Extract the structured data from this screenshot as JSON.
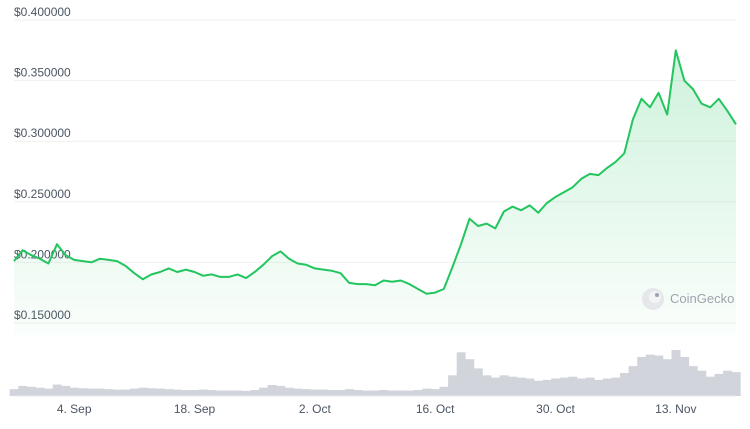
{
  "chart_data": {
    "type": "area",
    "title": "",
    "xlabel": "",
    "ylabel": "",
    "y_tick_labels": [
      "$0.400000",
      "$0.350000",
      "$0.300000",
      "$0.250000",
      "$0.200000",
      "$0.150000"
    ],
    "y_tick_values": [
      0.4,
      0.35,
      0.3,
      0.25,
      0.2,
      0.15
    ],
    "ylim": [
      0.14,
      0.41
    ],
    "x_tick_labels": [
      "4. Sep",
      "18. Sep",
      "2. Oct",
      "16. Oct",
      "30. Oct",
      "13. Nov"
    ],
    "x_tick_dates": [
      "2023-09-04",
      "2023-09-18",
      "2023-10-02",
      "2023-10-16",
      "2023-10-30",
      "2023-11-13"
    ],
    "xlim": [
      "2023-08-28",
      "2023-11-20"
    ],
    "grid": "horizontal",
    "line_color": "#22c55e",
    "fill_color": "#dcfce7",
    "volume_color": "#d1d5db",
    "series": [
      {
        "x": [
          "2023-08-28",
          "2023-08-29",
          "2023-08-30",
          "2023-08-31",
          "2023-09-01",
          "2023-09-02",
          "2023-09-03",
          "2023-09-04",
          "2023-09-05",
          "2023-09-06",
          "2023-09-07",
          "2023-09-08",
          "2023-09-09",
          "2023-09-10",
          "2023-09-11",
          "2023-09-12",
          "2023-09-13",
          "2023-09-14",
          "2023-09-15",
          "2023-09-16",
          "2023-09-17",
          "2023-09-18",
          "2023-09-19",
          "2023-09-20",
          "2023-09-21",
          "2023-09-22",
          "2023-09-23",
          "2023-09-24",
          "2023-09-25",
          "2023-09-26",
          "2023-09-27",
          "2023-09-28",
          "2023-09-29",
          "2023-09-30",
          "2023-10-01",
          "2023-10-02",
          "2023-10-03",
          "2023-10-04",
          "2023-10-05",
          "2023-10-06",
          "2023-10-07",
          "2023-10-08",
          "2023-10-09",
          "2023-10-10",
          "2023-10-11",
          "2023-10-12",
          "2023-10-13",
          "2023-10-14",
          "2023-10-15",
          "2023-10-16",
          "2023-10-17",
          "2023-10-18",
          "2023-10-19",
          "2023-10-20",
          "2023-10-21",
          "2023-10-22",
          "2023-10-23",
          "2023-10-24",
          "2023-10-25",
          "2023-10-26",
          "2023-10-27",
          "2023-10-28",
          "2023-10-29",
          "2023-10-30",
          "2023-10-31",
          "2023-11-01",
          "2023-11-02",
          "2023-11-03",
          "2023-11-04",
          "2023-11-05",
          "2023-11-06",
          "2023-11-07",
          "2023-11-08",
          "2023-11-09",
          "2023-11-10",
          "2023-11-11",
          "2023-11-12",
          "2023-11-13",
          "2023-11-14",
          "2023-11-15",
          "2023-11-16",
          "2023-11-17",
          "2023-11-18",
          "2023-11-19",
          "2023-11-20"
        ],
        "values": [
          0.201,
          0.21,
          0.206,
          0.203,
          0.199,
          0.215,
          0.206,
          0.202,
          0.201,
          0.2,
          0.203,
          0.202,
          0.201,
          0.197,
          0.191,
          0.186,
          0.19,
          0.192,
          0.195,
          0.192,
          0.194,
          0.192,
          0.189,
          0.19,
          0.188,
          0.188,
          0.19,
          0.187,
          0.192,
          0.198,
          0.205,
          0.209,
          0.203,
          0.199,
          0.198,
          0.195,
          0.194,
          0.193,
          0.191,
          0.183,
          0.182,
          0.182,
          0.181,
          0.185,
          0.184,
          0.185,
          0.182,
          0.178,
          0.174,
          0.175,
          0.178,
          0.196,
          0.215,
          0.236,
          0.23,
          0.232,
          0.228,
          0.242,
          0.246,
          0.243,
          0.247,
          0.241,
          0.249,
          0.254,
          0.258,
          0.262,
          0.269,
          0.273,
          0.272,
          0.278,
          0.283,
          0.29,
          0.318,
          0.335,
          0.328,
          0.34,
          0.322,
          0.375,
          0.35,
          0.343,
          0.331,
          0.328,
          0.335,
          0.325,
          0.314
        ]
      }
    ],
    "volume": {
      "units": "relative",
      "values": [
        0.15,
        0.22,
        0.2,
        0.18,
        0.16,
        0.25,
        0.22,
        0.18,
        0.17,
        0.16,
        0.16,
        0.15,
        0.14,
        0.14,
        0.16,
        0.18,
        0.17,
        0.16,
        0.15,
        0.14,
        0.13,
        0.13,
        0.14,
        0.13,
        0.12,
        0.12,
        0.12,
        0.11,
        0.13,
        0.18,
        0.24,
        0.22,
        0.18,
        0.16,
        0.15,
        0.14,
        0.14,
        0.13,
        0.13,
        0.15,
        0.13,
        0.12,
        0.12,
        0.13,
        0.12,
        0.12,
        0.12,
        0.13,
        0.16,
        0.15,
        0.2,
        0.45,
        0.95,
        0.8,
        0.6,
        0.45,
        0.4,
        0.45,
        0.42,
        0.4,
        0.38,
        0.33,
        0.35,
        0.38,
        0.4,
        0.42,
        0.38,
        0.4,
        0.35,
        0.38,
        0.4,
        0.5,
        0.65,
        0.85,
        0.9,
        0.88,
        0.8,
        1.0,
        0.85,
        0.65,
        0.55,
        0.42,
        0.48,
        0.55,
        0.52
      ]
    }
  },
  "watermark": {
    "text": "CoinGecko",
    "icon": "gecko-logo-icon"
  }
}
